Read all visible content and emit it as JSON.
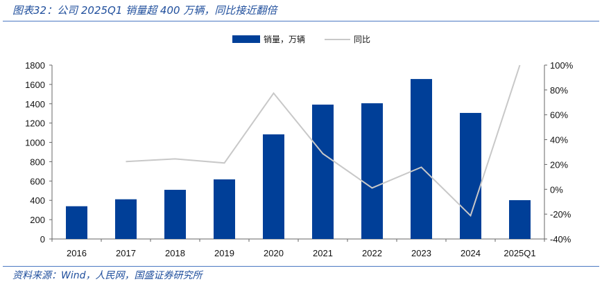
{
  "title": "图表32：公司 2025Q1 销量超 400 万辆，同比接近翻倍",
  "source": "资料来源：Wind，人民网，国盛证券研究所",
  "chart_data": {
    "type": "bar+line",
    "categories": [
      "2016",
      "2017",
      "2018",
      "2019",
      "2020",
      "2021",
      "2022",
      "2023",
      "2024",
      "2025Q1"
    ],
    "series": [
      {
        "name": "销量，万辆",
        "type": "bar",
        "axis": "left",
        "color": "#003f98",
        "values": [
          339,
          411,
          509,
          617,
          1083,
          1391,
          1405,
          1656,
          1305,
          402
        ]
      },
      {
        "name": "同比",
        "type": "line",
        "axis": "right",
        "color": "#c8c8c8",
        "values": [
          null,
          22.3,
          24.5,
          21.2,
          77.4,
          28.7,
          1.1,
          17.8,
          -21.2,
          100
        ]
      }
    ],
    "left_axis": {
      "ylim": [
        0,
        1800
      ],
      "ticks": [
        "0",
        "200",
        "400",
        "600",
        "800",
        "1000",
        "1200",
        "1400",
        "1600",
        "1800"
      ]
    },
    "right_axis": {
      "ylim": [
        -40,
        100
      ],
      "ticks": [
        "-40%",
        "-20%",
        "0%",
        "20%",
        "40%",
        "60%",
        "80%",
        "100%"
      ]
    },
    "grid": false,
    "legend": "top-right"
  }
}
